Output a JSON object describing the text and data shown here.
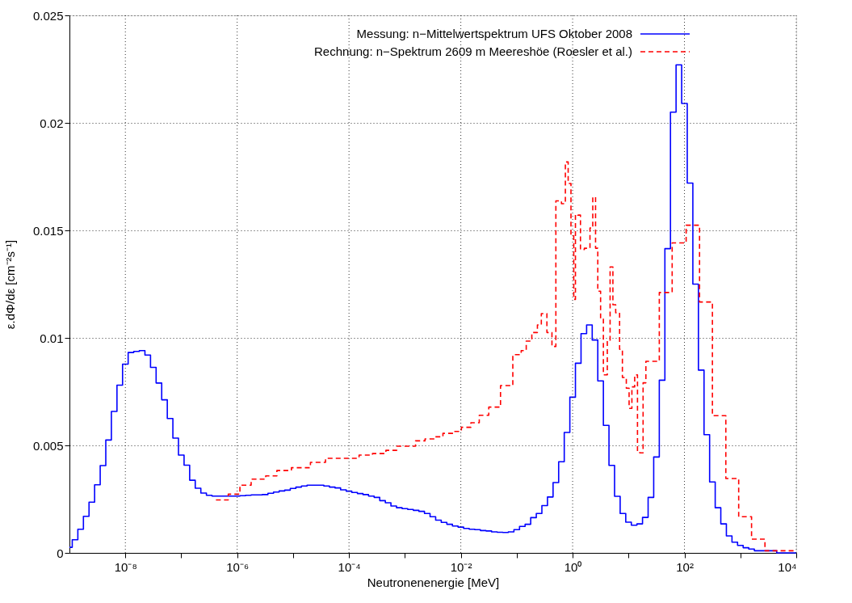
{
  "chart_data": {
    "type": "step",
    "xlabel": "Neutronenenergie [MeV]",
    "ylabel": "ε.dΦ/dε [cm⁻²s⁻¹]",
    "log": "x",
    "grid": true,
    "legend": "top right",
    "xlim": [
      1e-09,
      10000
    ],
    "ylim": [
      0,
      0.025
    ],
    "xticks": [
      {
        "value": 1e-08,
        "label": "10⁻⁸"
      },
      {
        "value": 1e-07,
        "label": null
      },
      {
        "value": 1e-06,
        "label": "10⁻⁶"
      },
      {
        "value": 1e-05,
        "label": null
      },
      {
        "value": 0.0001,
        "label": "10⁻⁴"
      },
      {
        "value": 0.001,
        "label": null
      },
      {
        "value": 0.01,
        "label": "10⁻²"
      },
      {
        "value": 0.1,
        "label": null
      },
      {
        "value": 1,
        "label": "10⁰"
      },
      {
        "value": 10,
        "label": null
      },
      {
        "value": 100,
        "label": "10²"
      },
      {
        "value": 1000,
        "label": null
      },
      {
        "value": 10000,
        "label": "10⁴"
      }
    ],
    "yticks": [
      0,
      0.005,
      0.01,
      0.015,
      0.02,
      0.025
    ],
    "series": [
      {
        "name": "Messung: n−Mittelwertspektrum UFS Oktober 2008",
        "color": "#0000ff",
        "line_style": "solid",
        "x": [
          1e-09,
          1.122e-09,
          1.413e-09,
          1.778e-09,
          2.239e-09,
          2.818e-09,
          3.548e-09,
          4.467e-09,
          5.623e-09,
          7.079e-09,
          8.913e-09,
          1.122e-08,
          1.413e-08,
          1.778e-08,
          2.239e-08,
          2.818e-08,
          3.548e-08,
          4.467e-08,
          5.623e-08,
          7.079e-08,
          8.913e-08,
          1.122e-07,
          1.413e-07,
          1.778e-07,
          2.239e-07,
          2.818e-07,
          3.548e-07,
          4.467e-07,
          5.623e-07,
          7.079e-07,
          8.913e-07,
          1.122e-06,
          1.413e-06,
          1.778e-06,
          2.239e-06,
          2.818e-06,
          3.548e-06,
          4.467e-06,
          5.623e-06,
          7.079e-06,
          8.913e-06,
          1.122e-05,
          1.413e-05,
          1.778e-05,
          2.239e-05,
          2.818e-05,
          3.548e-05,
          4.467e-05,
          5.623e-05,
          7.079e-05,
          8.913e-05,
          0.0001122,
          0.0001413,
          0.0001778,
          0.0002239,
          0.0002818,
          0.0003548,
          0.0004467,
          0.0005623,
          0.0007079,
          0.0008913,
          0.001122,
          0.001413,
          0.001778,
          0.002239,
          0.002818,
          0.003548,
          0.004467,
          0.005623,
          0.007079,
          0.008913,
          0.01122,
          0.01413,
          0.01778,
          0.02239,
          0.02818,
          0.03548,
          0.04467,
          0.05623,
          0.07079,
          0.08913,
          0.1122,
          0.1413,
          0.1778,
          0.2239,
          0.2818,
          0.3548,
          0.4467,
          0.5623,
          0.7079,
          0.8913,
          1.122,
          1.413,
          1.778,
          2.239,
          2.818,
          3.548,
          4.467,
          5.623,
          7.079,
          8.913,
          11.22,
          14.13,
          17.78,
          22.39,
          28.18,
          35.48,
          44.67,
          56.23,
          70.79,
          89.13,
          112.2,
          141.3,
          177.8,
          223.9,
          281.8,
          354.8,
          446.7,
          562.3,
          707.9,
          891.3,
          1122,
          1413,
          1778,
          2239,
          2818,
          3548,
          4467,
          5623,
          7079,
          8913,
          10000
        ],
        "values": [
          0.00026,
          0.00061,
          0.0011,
          0.0017,
          0.00236,
          0.00317,
          0.00406,
          0.00525,
          0.00658,
          0.0078,
          0.00878,
          0.00932,
          0.00937,
          0.00941,
          0.0092,
          0.00863,
          0.0079,
          0.00712,
          0.00625,
          0.00534,
          0.00455,
          0.00408,
          0.00338,
          0.00301,
          0.00278,
          0.00268,
          0.00264,
          0.00264,
          0.00264,
          0.00264,
          0.00264,
          0.00266,
          0.00268,
          0.0027,
          0.0027,
          0.00271,
          0.00277,
          0.00283,
          0.00288,
          0.00292,
          0.003,
          0.00306,
          0.00311,
          0.00315,
          0.00315,
          0.00315,
          0.00311,
          0.00306,
          0.00302,
          0.00293,
          0.00287,
          0.00281,
          0.00276,
          0.00271,
          0.00264,
          0.00258,
          0.00243,
          0.00233,
          0.00218,
          0.0021,
          0.00206,
          0.00202,
          0.00198,
          0.00193,
          0.00183,
          0.00168,
          0.00152,
          0.00142,
          0.00133,
          0.00125,
          0.0012,
          0.00114,
          0.0011,
          0.00108,
          0.00104,
          0.00102,
          0.00098,
          0.00096,
          0.00095,
          0.00098,
          0.00108,
          0.00123,
          0.00133,
          0.00164,
          0.00183,
          0.0022,
          0.0026,
          0.00327,
          0.00424,
          0.0056,
          0.00724,
          0.00882,
          0.0102,
          0.0106,
          0.0099,
          0.008,
          0.00593,
          0.00407,
          0.00263,
          0.00183,
          0.00143,
          0.00129,
          0.00135,
          0.00165,
          0.00258,
          0.00446,
          0.00803,
          0.01415,
          0.0205,
          0.0227,
          0.0209,
          0.0172,
          0.0125,
          0.0085,
          0.0055,
          0.0033,
          0.0021,
          0.00135,
          0.00079,
          0.0005,
          0.00035,
          0.00024,
          0.00018,
          0.0001,
          0.0001,
          0.0001,
          0.0001,
          0,
          0,
          0,
          0,
          0
        ]
      },
      {
        "name": "Rechnung: n−Spektrum 2609 m Meereshöe (Roesler et al.)",
        "color": "#ff0000",
        "line_style": "dashed",
        "x": [
          4.17e-07,
          6.92e-07,
          1.12e-06,
          1.778e-06,
          3.236e-06,
          5.129e-06,
          9.333e-06,
          2.042e-05,
          3.802e-05,
          0.0001514,
          0.000263,
          0.0004571,
          0.000716,
          0.001549,
          0.002291,
          0.003388,
          0.004786,
          0.007413,
          0.01023,
          0.01514,
          0.02138,
          0.03162,
          0.05129,
          0.08511,
          0.1202,
          0.1479,
          0.1862,
          0.2344,
          0.2754,
          0.3467,
          0.4266,
          0.5012,
          0.631,
          0.7413,
          0.8318,
          0.9333,
          1.047,
          1.122,
          1.23,
          1.38,
          1.622,
          2.042,
          2.291,
          2.57,
          2.818,
          3.162,
          3.548,
          4.169,
          4.677,
          5.248,
          5.888,
          6.918,
          7.762,
          9.12,
          10.23,
          11.48,
          12.88,
          14.45,
          15.85,
          18.2,
          20.42,
          35.48,
          60.26,
          107.2,
          186.2,
          316.2,
          549.5,
          933.3,
          1585,
          2754,
          4786,
          10000
        ],
        "values": [
          0.00246,
          0.00273,
          0.00315,
          0.00343,
          0.00358,
          0.00383,
          0.00396,
          0.00421,
          0.0044,
          0.00455,
          0.00462,
          0.00477,
          0.00496,
          0.00521,
          0.0053,
          0.0054,
          0.00556,
          0.00565,
          0.00584,
          0.00605,
          0.0064,
          0.00678,
          0.00778,
          0.00922,
          0.00941,
          0.00985,
          0.01025,
          0.0106,
          0.01113,
          0.01025,
          0.0096,
          0.01637,
          0.01624,
          0.01818,
          0.01718,
          0.01474,
          0.01179,
          0.01574,
          0.01571,
          0.01411,
          0.01417,
          0.01511,
          0.01655,
          0.01417,
          0.01217,
          0.01091,
          0.00828,
          0.00985,
          0.0133,
          0.01154,
          0.01117,
          0.00947,
          0.00816,
          0.00766,
          0.00672,
          0.00772,
          0.00828,
          0.00471,
          0.00465,
          0.00791,
          0.00891,
          0.01211,
          0.01442,
          0.01524,
          0.01167,
          0.00638,
          0.00346,
          0.00168,
          0.00064,
          0.0001,
          0.0001,
          0.0001
        ]
      }
    ]
  }
}
